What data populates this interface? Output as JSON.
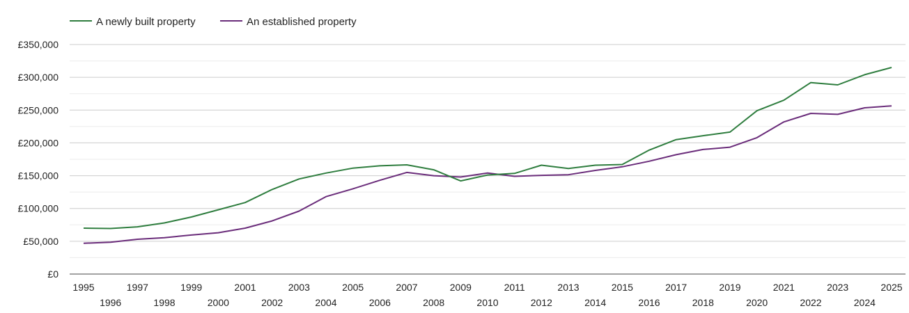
{
  "chart_data": {
    "type": "line",
    "title": "",
    "xlabel": "",
    "ylabel": "",
    "ylim": [
      0,
      350000
    ],
    "yticks": [
      0,
      50000,
      100000,
      150000,
      200000,
      250000,
      300000,
      350000
    ],
    "ytick_labels": [
      "£0",
      "£50,000",
      "£100,000",
      "£150,000",
      "£200,000",
      "£250,000",
      "£300,000",
      "£350,000"
    ],
    "grid": true,
    "legend_position": "top-left",
    "x": [
      1995,
      1996,
      1997,
      1998,
      1999,
      2000,
      2001,
      2002,
      2003,
      2004,
      2005,
      2006,
      2007,
      2008,
      2009,
      2010,
      2011,
      2012,
      2013,
      2014,
      2015,
      2016,
      2017,
      2018,
      2019,
      2020,
      2021,
      2022,
      2023,
      2024,
      2025
    ],
    "series": [
      {
        "name": "A newly built property",
        "color": "#2e7d3e",
        "values": [
          70000,
          69500,
          72000,
          78000,
          87000,
          98000,
          109000,
          129000,
          145000,
          154000,
          161500,
          165000,
          166500,
          159000,
          142000,
          151000,
          153500,
          166000,
          161000,
          166000,
          167000,
          189000,
          205000,
          211000,
          216500,
          249000,
          265000,
          292000,
          288500,
          304000,
          315000
        ]
      },
      {
        "name": "An established property",
        "color": "#6a2c7a",
        "values": [
          47000,
          48500,
          53000,
          55500,
          59500,
          63000,
          70000,
          81000,
          96000,
          118000,
          130000,
          143000,
          155000,
          150000,
          148000,
          154000,
          149000,
          150500,
          151500,
          158000,
          163500,
          172000,
          182000,
          190000,
          193500,
          208000,
          232000,
          245000,
          243500,
          253500,
          256500
        ]
      }
    ]
  }
}
